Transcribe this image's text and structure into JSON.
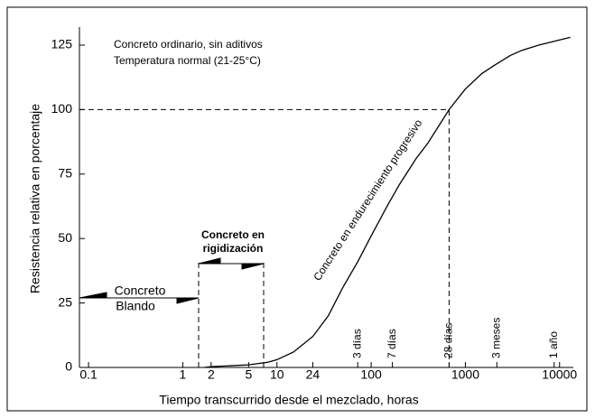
{
  "chart_data": {
    "type": "line",
    "x_label": "Tiempo transcurrido desde el mezclado, horas",
    "y_label": "Resistencia relativa en porcentaje",
    "notes": [
      "Concreto ordinario, sin aditivos",
      "Temperatura normal (21-25°C)"
    ],
    "curve_label": "Concreto en endurecimiento progresivo",
    "stiffening_label": [
      "Concreto en",
      "rigidización"
    ],
    "plastic_label": [
      "Concreto",
      "Blando"
    ],
    "xscale": "log",
    "xlim": [
      0.08,
      14000
    ],
    "ylim": [
      0,
      132
    ],
    "xticks": [
      0.1,
      1,
      2,
      5,
      10,
      24,
      100,
      1000,
      10000
    ],
    "yticks": [
      0,
      25,
      50,
      75,
      100,
      125
    ],
    "time_marks": [
      {
        "text": "3 días",
        "x": 72
      },
      {
        "text": "7 días",
        "x": 168
      },
      {
        "text": "28 días",
        "x": 672
      },
      {
        "text": "3 meses",
        "x": 2160
      },
      {
        "text": "1 año",
        "x": 8760
      }
    ],
    "series": [
      {
        "color": "#000000",
        "x": [
          1.7,
          2,
          3,
          5,
          8,
          10,
          15,
          24,
          35,
          50,
          72,
          100,
          150,
          200,
          300,
          400,
          672,
          1000,
          1500,
          2000,
          3000,
          4000,
          6000,
          10000,
          13000
        ],
        "values": [
          0,
          0.3,
          0.6,
          1,
          2,
          3,
          6,
          12,
          20,
          31,
          41,
          51,
          63,
          71,
          81,
          87,
          100,
          108,
          114,
          117,
          121,
          123,
          125,
          127,
          128
        ]
      }
    ]
  }
}
